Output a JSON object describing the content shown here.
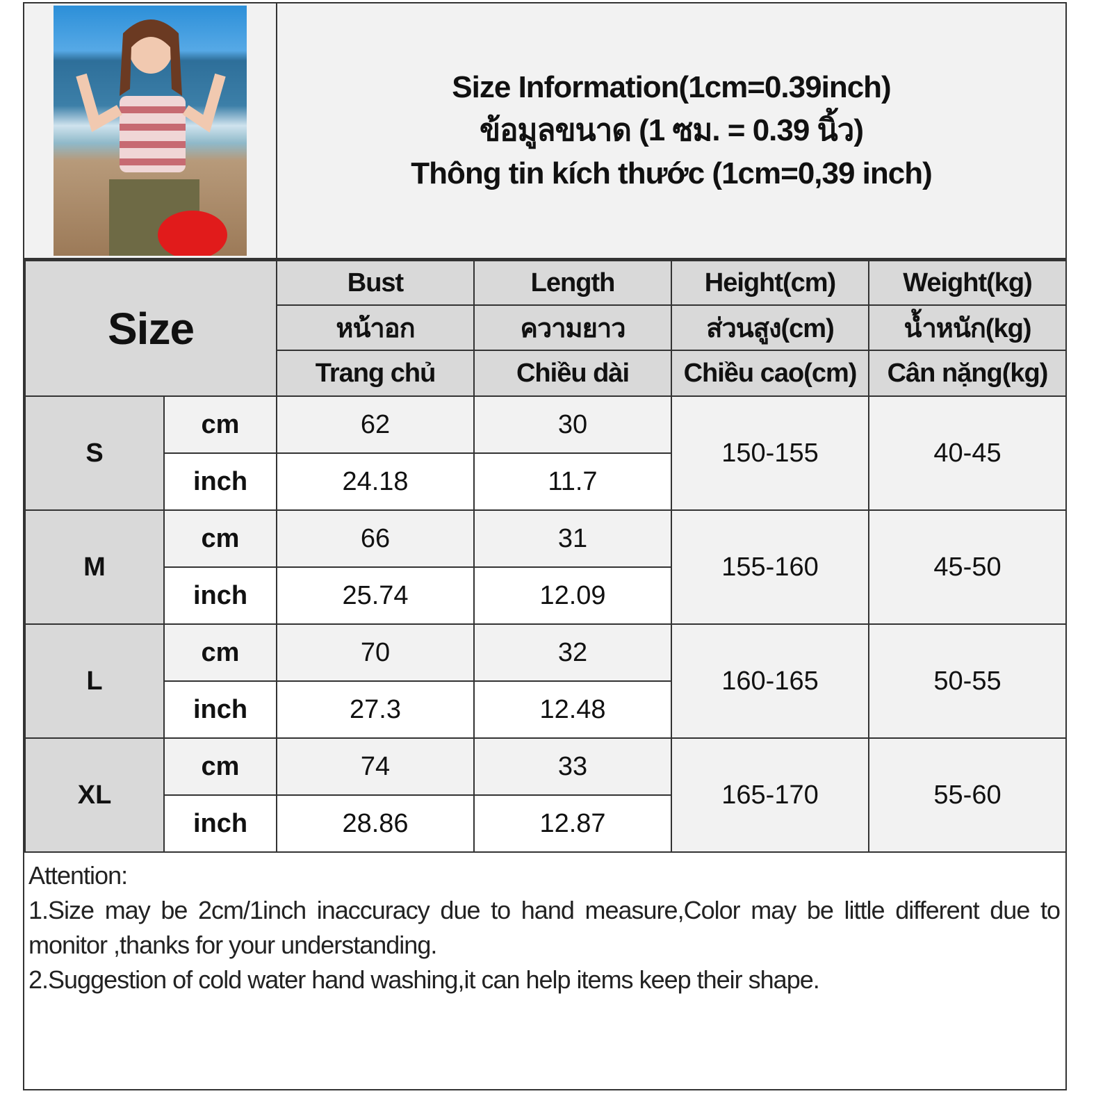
{
  "header": {
    "title_en": "Size Information(1cm=0.39inch)",
    "title_th": "ข้อมูลขนาด (1 ซม. = 0.39 นิ้ว)",
    "title_vi": "Thông tin kích thước (1cm=0,39 inch)"
  },
  "table": {
    "size_header": "Size",
    "columns": [
      {
        "en": "Bust",
        "th": "หน้าอก",
        "vi": "Trang chủ"
      },
      {
        "en": "Length",
        "th": "ความยาว",
        "vi": "Chiều dài"
      },
      {
        "en": "Height(cm)",
        "th": "ส่วนสูง(cm)",
        "vi": "Chiều cao(cm)"
      },
      {
        "en": "Weight(kg)",
        "th": "น้ำหนัก(kg)",
        "vi": "Cân nặng(kg)"
      }
    ],
    "units": {
      "cm": "cm",
      "inch": "inch"
    },
    "rows": [
      {
        "size": "S",
        "bust_cm": "62",
        "length_cm": "30",
        "bust_inch": "24.18",
        "length_inch": "11.7",
        "height": "150-155",
        "weight": "40-45"
      },
      {
        "size": "M",
        "bust_cm": "66",
        "length_cm": "31",
        "bust_inch": "25.74",
        "length_inch": "12.09",
        "height": "155-160",
        "weight": "45-50"
      },
      {
        "size": "L",
        "bust_cm": "70",
        "length_cm": "32",
        "bust_inch": "27.3",
        "length_inch": "12.48",
        "height": "160-165",
        "weight": "50-55"
      },
      {
        "size": "XL",
        "bust_cm": "74",
        "length_cm": "33",
        "bust_inch": "28.86",
        "length_inch": "12.87",
        "height": "165-170",
        "weight": "55-60"
      }
    ]
  },
  "notes": {
    "heading": "Attention:",
    "line1": "1.Size may be 2cm/1inch inaccuracy due to hand measure,Color may be little different due to monitor ,thanks for your understanding.",
    "line2": "2.Suggestion of cold water hand washing,it can help items keep their shape."
  }
}
